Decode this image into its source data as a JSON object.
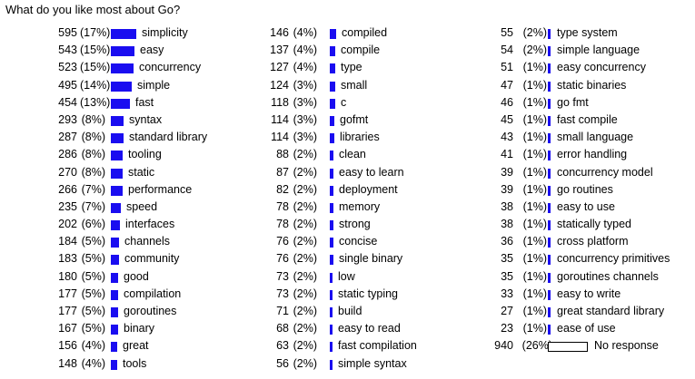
{
  "chart_data": {
    "type": "bar",
    "title": "What do you like most about Go?",
    "max_bar_value": 595,
    "series": [
      {
        "label": "simplicity",
        "count": 595,
        "percent": "(17%)"
      },
      {
        "label": "easy",
        "count": 543,
        "percent": "(15%)"
      },
      {
        "label": "concurrency",
        "count": 523,
        "percent": "(15%)"
      },
      {
        "label": "simple",
        "count": 495,
        "percent": "(14%)"
      },
      {
        "label": "fast",
        "count": 454,
        "percent": "(13%)"
      },
      {
        "label": "syntax",
        "count": 293,
        "percent": "(8%)"
      },
      {
        "label": "standard library",
        "count": 287,
        "percent": "(8%)"
      },
      {
        "label": "tooling",
        "count": 286,
        "percent": "(8%)"
      },
      {
        "label": "static",
        "count": 270,
        "percent": "(8%)"
      },
      {
        "label": "performance",
        "count": 266,
        "percent": "(7%)"
      },
      {
        "label": "speed",
        "count": 235,
        "percent": "(7%)"
      },
      {
        "label": "interfaces",
        "count": 202,
        "percent": "(6%)"
      },
      {
        "label": "channels",
        "count": 184,
        "percent": "(5%)"
      },
      {
        "label": "community",
        "count": 183,
        "percent": "(5%)"
      },
      {
        "label": "good",
        "count": 180,
        "percent": "(5%)"
      },
      {
        "label": "compilation",
        "count": 177,
        "percent": "(5%)"
      },
      {
        "label": "goroutines",
        "count": 177,
        "percent": "(5%)"
      },
      {
        "label": "binary",
        "count": 167,
        "percent": "(5%)"
      },
      {
        "label": "great",
        "count": 156,
        "percent": "(4%)"
      },
      {
        "label": "tools",
        "count": 148,
        "percent": "(4%)"
      },
      {
        "label": "compiled",
        "count": 146,
        "percent": "(4%)"
      },
      {
        "label": "compile",
        "count": 137,
        "percent": "(4%)"
      },
      {
        "label": "type",
        "count": 127,
        "percent": "(4%)"
      },
      {
        "label": "small",
        "count": 124,
        "percent": "(3%)"
      },
      {
        "label": "c",
        "count": 118,
        "percent": "(3%)"
      },
      {
        "label": "gofmt",
        "count": 114,
        "percent": "(3%)"
      },
      {
        "label": "libraries",
        "count": 114,
        "percent": "(3%)"
      },
      {
        "label": "clean",
        "count": 88,
        "percent": "(2%)"
      },
      {
        "label": "easy to learn",
        "count": 87,
        "percent": "(2%)"
      },
      {
        "label": "deployment",
        "count": 82,
        "percent": "(2%)"
      },
      {
        "label": "memory",
        "count": 78,
        "percent": "(2%)"
      },
      {
        "label": "strong",
        "count": 78,
        "percent": "(2%)"
      },
      {
        "label": "concise",
        "count": 76,
        "percent": "(2%)"
      },
      {
        "label": "single binary",
        "count": 76,
        "percent": "(2%)"
      },
      {
        "label": "low",
        "count": 73,
        "percent": "(2%)"
      },
      {
        "label": "static typing",
        "count": 73,
        "percent": "(2%)"
      },
      {
        "label": "build",
        "count": 71,
        "percent": "(2%)"
      },
      {
        "label": "easy to read",
        "count": 68,
        "percent": "(2%)"
      },
      {
        "label": "fast compilation",
        "count": 63,
        "percent": "(2%)"
      },
      {
        "label": "simple syntax",
        "count": 56,
        "percent": "(2%)"
      },
      {
        "label": "type system",
        "count": 55,
        "percent": "(2%)"
      },
      {
        "label": "simple language",
        "count": 54,
        "percent": "(2%)"
      },
      {
        "label": "easy concurrency",
        "count": 51,
        "percent": "(1%)"
      },
      {
        "label": "static binaries",
        "count": 47,
        "percent": "(1%)"
      },
      {
        "label": "go fmt",
        "count": 46,
        "percent": "(1%)"
      },
      {
        "label": "fast compile",
        "count": 45,
        "percent": "(1%)"
      },
      {
        "label": "small language",
        "count": 43,
        "percent": "(1%)"
      },
      {
        "label": "error handling",
        "count": 41,
        "percent": "(1%)"
      },
      {
        "label": "concurrency model",
        "count": 39,
        "percent": "(1%)"
      },
      {
        "label": "go routines",
        "count": 39,
        "percent": "(1%)"
      },
      {
        "label": "easy to use",
        "count": 38,
        "percent": "(1%)"
      },
      {
        "label": "statically typed",
        "count": 38,
        "percent": "(1%)"
      },
      {
        "label": "cross platform",
        "count": 36,
        "percent": "(1%)"
      },
      {
        "label": "concurrency primitives",
        "count": 35,
        "percent": "(1%)"
      },
      {
        "label": "goroutines channels",
        "count": 35,
        "percent": "(1%)"
      },
      {
        "label": "easy to write",
        "count": 33,
        "percent": "(1%)"
      },
      {
        "label": "great standard library",
        "count": 27,
        "percent": "(1%)"
      },
      {
        "label": "ease of use",
        "count": 23,
        "percent": "(1%)"
      },
      {
        "label": "No response",
        "count": 940,
        "percent": "(26%)",
        "no_response": true
      }
    ],
    "colors": {
      "bar": "#1a0df0",
      "no_response_fill": "#ffffff",
      "no_response_border": "#000000"
    }
  }
}
